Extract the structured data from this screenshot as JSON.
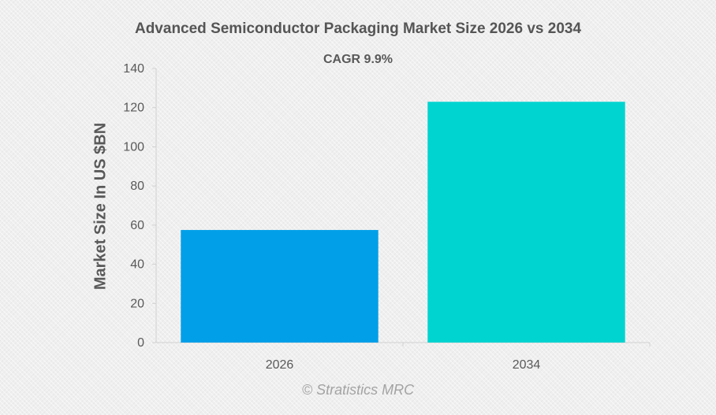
{
  "chart_data": {
    "type": "bar",
    "title": "Advanced Semiconductor Packaging Market Size 2026 vs 2034",
    "subtitle": "CAGR 9.9%",
    "xlabel": "",
    "ylabel": "Market Size In US $BN",
    "categories": [
      "2026",
      "2034"
    ],
    "values": [
      57.5,
      123
    ],
    "bar_colors": [
      "#009fe8",
      "#00d4d0"
    ],
    "ylim": [
      0,
      140
    ],
    "yticks": [
      0,
      20,
      40,
      60,
      80,
      100,
      120,
      140
    ],
    "grid": false,
    "legend": "none"
  },
  "footer": {
    "watermark": "© Stratistics MRC"
  },
  "colors": {
    "background": "#efefef",
    "text": "#595959",
    "axis": "#d0d0d0"
  }
}
